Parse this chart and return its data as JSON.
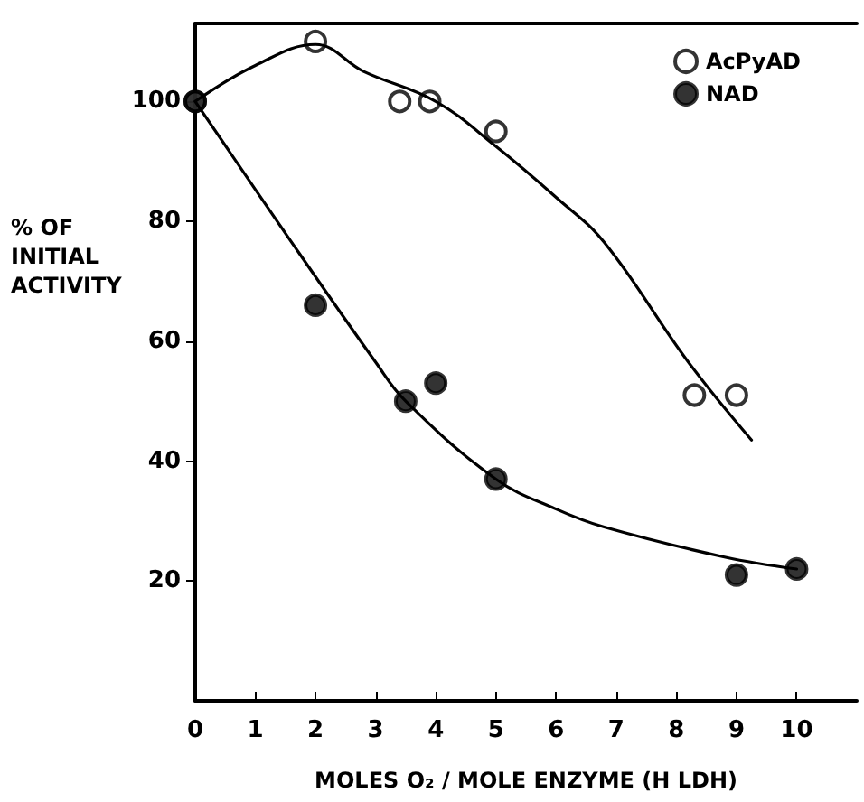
{
  "chart_data": {
    "type": "scatter",
    "xlabel": "MOLES O₂ / MOLE ENZYME (H LDH)",
    "ylabel": "% OF INITIAL ACTIVITY",
    "xlim": [
      0,
      11
    ],
    "xticks": [
      0,
      1,
      2,
      3,
      4,
      5,
      6,
      7,
      8,
      9,
      10
    ],
    "ylim": [
      0,
      113
    ],
    "yticks": [
      20,
      40,
      60,
      80,
      100
    ],
    "legend": "top right",
    "marker": "circle",
    "grid": false,
    "series": [
      {
        "name": "AcPyAD",
        "color": "#ffffff",
        "x": [
          0,
          2,
          3.4,
          3.9,
          5,
          8.3,
          9
        ],
        "values": [
          100,
          110,
          100,
          100,
          95,
          51,
          51
        ]
      },
      {
        "name": "NAD",
        "color": "#000000",
        "x": [
          0,
          2,
          3.5,
          4,
          5,
          9,
          10
        ],
        "values": [
          100,
          66,
          50,
          53,
          37,
          21,
          22
        ]
      },
      {
        "type": "line",
        "color": "#000000",
        "marker": "none",
        "x": [
          0,
          1,
          2,
          2.8,
          4,
          5,
          6,
          6.8,
          8.2,
          9.25
        ],
        "values": [
          100,
          106,
          109.5,
          105,
          100,
          92.5,
          84,
          76.5,
          56.5,
          43.5
        ]
      },
      {
        "type": "line",
        "color": "#000000",
        "marker": "none",
        "x": [
          0,
          1.5,
          3,
          3.5,
          5,
          6,
          6.8,
          8.8,
          10
        ],
        "values": [
          100,
          78,
          56.5,
          50,
          37,
          32,
          29,
          24,
          22
        ]
      }
    ]
  }
}
